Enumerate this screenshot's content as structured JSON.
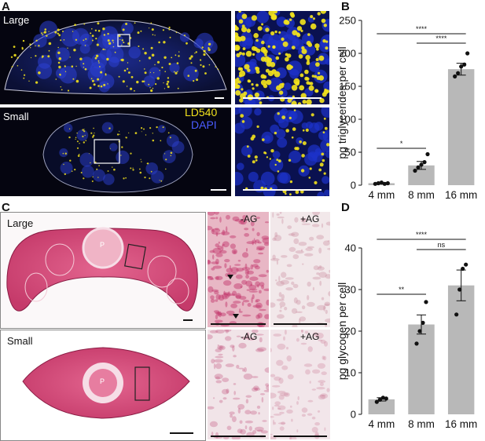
{
  "panels": {
    "A": "A",
    "B": "B",
    "C": "C",
    "D": "D"
  },
  "panel_a": {
    "large_label": "Large",
    "small_label": "Small",
    "stain_1": "LD540",
    "stain_2": "DAPI",
    "colors": {
      "ld540": "#f2e21c",
      "dapi": "#2b3fd1",
      "background": "#050510"
    }
  },
  "panel_c": {
    "large_label": "Large",
    "small_label": "Small",
    "minus_ag": "-AG",
    "plus_ag": "+AG",
    "pharynx": "P",
    "colors": {
      "stain": "#d44a7a",
      "background": "#f3e6ea"
    }
  },
  "chart_data": [
    {
      "type": "bar",
      "panel": "B",
      "categories": [
        "4 mm",
        "8 mm",
        "16 mm"
      ],
      "values": [
        3,
        30,
        176
      ],
      "errors": [
        1,
        6,
        9
      ],
      "points": [
        [
          2,
          3,
          4,
          2,
          3
        ],
        [
          22,
          27,
          31,
          35,
          47
        ],
        [
          165,
          170,
          180,
          183,
          200
        ]
      ],
      "ylabel": "pg triglycerides per cell",
      "ylim": [
        0,
        250
      ],
      "yticks": [
        0,
        50,
        100,
        150,
        200,
        250
      ],
      "significance": [
        {
          "from": 0,
          "to": 1,
          "label": "*"
        },
        {
          "from": 0,
          "to": 2,
          "label": "****"
        },
        {
          "from": 1,
          "to": 2,
          "label": "****"
        }
      ],
      "bar_color": "#b8b8b8"
    },
    {
      "type": "bar",
      "panel": "D",
      "categories": [
        "4 mm",
        "8 mm",
        "16 mm"
      ],
      "values": [
        3.6,
        21.6,
        31
      ],
      "errors": [
        0.4,
        2.3,
        3.7
      ],
      "points": [
        [
          3.0,
          3.5,
          4.0,
          3.8
        ],
        [
          17,
          20,
          22,
          27
        ],
        [
          24,
          30,
          35,
          36
        ]
      ],
      "ylabel": "pg glycogen per cell",
      "ylim": [
        0,
        40
      ],
      "yticks": [
        0,
        10,
        20,
        30,
        40
      ],
      "significance": [
        {
          "from": 0,
          "to": 1,
          "label": "**"
        },
        {
          "from": 0,
          "to": 2,
          "label": "****"
        },
        {
          "from": 1,
          "to": 2,
          "label": "ns"
        }
      ],
      "bar_color": "#b8b8b8"
    }
  ]
}
